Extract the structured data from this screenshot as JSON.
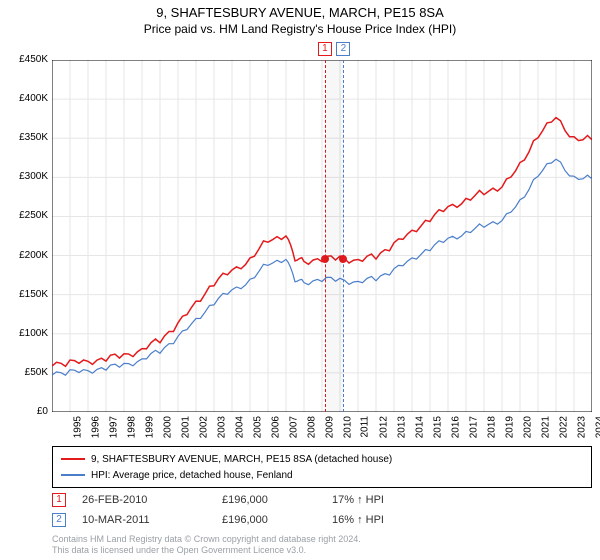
{
  "title_line1": "9, SHAFTESBURY AVENUE, MARCH, PE15 8SA",
  "title_line2": "Price paid vs. HM Land Registry's House Price Index (HPI)",
  "chart": {
    "type": "line",
    "background_color": "#ffffff",
    "grid_color": "#e6e6e6",
    "axis_color": "#000000",
    "xlim": [
      1995,
      2025
    ],
    "ylim": [
      0,
      450000
    ],
    "ytick_step": 50000,
    "ytick_labels": [
      "£0",
      "£50K",
      "£100K",
      "£150K",
      "£200K",
      "£250K",
      "£300K",
      "£350K",
      "£400K",
      "£450K"
    ],
    "xtick_step": 1,
    "xtick_labels": [
      "1995",
      "1996",
      "1997",
      "1998",
      "1999",
      "2000",
      "2001",
      "2002",
      "2003",
      "2004",
      "2005",
      "2006",
      "2007",
      "2008",
      "2009",
      "2010",
      "2011",
      "2012",
      "2013",
      "2014",
      "2015",
      "2016",
      "2017",
      "2018",
      "2019",
      "2020",
      "2021",
      "2022",
      "2023",
      "2024",
      "2025"
    ],
    "series": [
      {
        "name": "9, SHAFTESBURY AVENUE, MARCH, PE15 8SA (detached house)",
        "color": "#e31a1c",
        "line_width": 1.5,
        "data": [
          [
            1995,
            62000
          ],
          [
            1996,
            63000
          ],
          [
            1997,
            65000
          ],
          [
            1998,
            68000
          ],
          [
            1999,
            72000
          ],
          [
            2000,
            80000
          ],
          [
            2001,
            92000
          ],
          [
            2002,
            112000
          ],
          [
            2003,
            140000
          ],
          [
            2004,
            165000
          ],
          [
            2005,
            180000
          ],
          [
            2006,
            195000
          ],
          [
            2007,
            220000
          ],
          [
            2008,
            225000
          ],
          [
            2008.5,
            195000
          ],
          [
            2009,
            192000
          ],
          [
            2010,
            196000
          ],
          [
            2011,
            196000
          ],
          [
            2012,
            195000
          ],
          [
            2013,
            198000
          ],
          [
            2014,
            215000
          ],
          [
            2015,
            230000
          ],
          [
            2016,
            248000
          ],
          [
            2017,
            260000
          ],
          [
            2018,
            272000
          ],
          [
            2019,
            280000
          ],
          [
            2020,
            288000
          ],
          [
            2021,
            315000
          ],
          [
            2022,
            355000
          ],
          [
            2023,
            375000
          ],
          [
            2024,
            350000
          ],
          [
            2025,
            348000
          ]
        ]
      },
      {
        "name": "HPI: Average price, detached house, Fenland",
        "color": "#4a7ecb",
        "line_width": 1.2,
        "data": [
          [
            1995,
            50000
          ],
          [
            1996,
            51000
          ],
          [
            1997,
            53000
          ],
          [
            1998,
            56000
          ],
          [
            1999,
            60000
          ],
          [
            2000,
            67000
          ],
          [
            2001,
            78000
          ],
          [
            2002,
            95000
          ],
          [
            2003,
            118000
          ],
          [
            2004,
            140000
          ],
          [
            2005,
            155000
          ],
          [
            2006,
            168000
          ],
          [
            2007,
            190000
          ],
          [
            2008,
            195000
          ],
          [
            2008.5,
            168000
          ],
          [
            2009,
            165000
          ],
          [
            2010,
            170000
          ],
          [
            2011,
            168000
          ],
          [
            2012,
            167000
          ],
          [
            2013,
            170000
          ],
          [
            2014,
            182000
          ],
          [
            2015,
            195000
          ],
          [
            2016,
            210000
          ],
          [
            2017,
            220000
          ],
          [
            2018,
            230000
          ],
          [
            2019,
            238000
          ],
          [
            2020,
            245000
          ],
          [
            2021,
            268000
          ],
          [
            2022,
            305000
          ],
          [
            2023,
            322000
          ],
          [
            2024,
            300000
          ],
          [
            2025,
            298000
          ]
        ]
      }
    ],
    "sale_markers": [
      {
        "id": "1",
        "x": 2010.16,
        "y": 196000,
        "color": "#e31a1c",
        "dot_color": "#e31a1c"
      },
      {
        "id": "2",
        "x": 2011.19,
        "y": 196000,
        "color": "#4a7ecb",
        "dot_color": "#e31a1c"
      }
    ]
  },
  "legend": {
    "series1_label": "9, SHAFTESBURY AVENUE, MARCH, PE15 8SA (detached house)",
    "series2_label": "HPI: Average price, detached house, Fenland"
  },
  "sales_table": {
    "rows": [
      {
        "badge": "1",
        "badge_color": "#e31a1c",
        "date": "26-FEB-2010",
        "price": "£196,000",
        "hpi": "17% ↑ HPI"
      },
      {
        "badge": "2",
        "badge_color": "#4a7ecb",
        "date": "10-MAR-2011",
        "price": "£196,000",
        "hpi": "16% ↑ HPI"
      }
    ]
  },
  "footer": {
    "line1": "Contains HM Land Registry data © Crown copyright and database right 2024.",
    "line2": "This data is licensed under the Open Government Licence v3.0."
  }
}
